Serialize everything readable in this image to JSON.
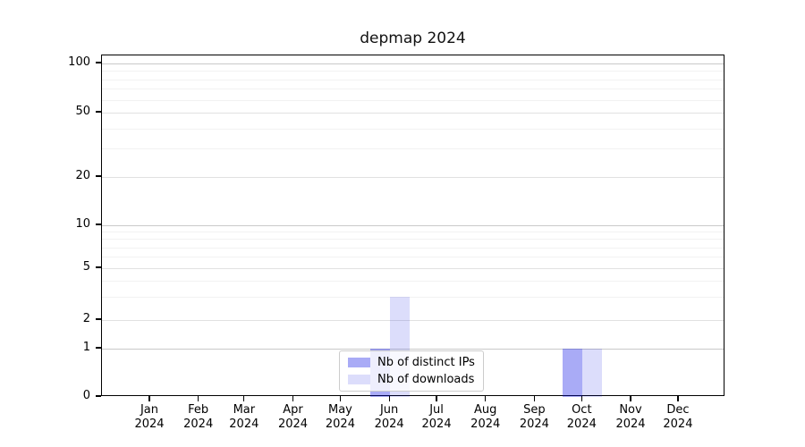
{
  "chart_data": {
    "type": "bar",
    "title": "depmap 2024",
    "categories": [
      "Jan 2024",
      "Feb 2024",
      "Mar 2024",
      "Apr 2024",
      "May 2024",
      "Jun 2024",
      "Jul 2024",
      "Aug 2024",
      "Sep 2024",
      "Oct 2024",
      "Nov 2024",
      "Dec 2024"
    ],
    "series": [
      {
        "name": "Nb of distinct IPs",
        "values": [
          0,
          0,
          0,
          0,
          0,
          1,
          0,
          0,
          0,
          1,
          0,
          0
        ]
      },
      {
        "name": "Nb of downloads",
        "values": [
          0,
          0,
          0,
          0,
          0,
          3,
          0,
          0,
          0,
          1,
          0,
          0
        ]
      }
    ],
    "xlabel": "",
    "ylabel": "",
    "yscale": "symlog (logarithmic above 1, linear 0 to 1)",
    "y_ticks": [
      100,
      50,
      20,
      10,
      5,
      2,
      1,
      0
    ],
    "ylim": [
      0,
      113
    ],
    "grid": "horizontal major and minor gridlines",
    "legend_position": "lower center, inside axes"
  },
  "axis": {
    "months": [
      "Jan",
      "Feb",
      "Mar",
      "Apr",
      "May",
      "Jun",
      "Jul",
      "Aug",
      "Sep",
      "Oct",
      "Nov",
      "Dec"
    ],
    "year_label": "2024"
  },
  "colors": {
    "bar_distinct_ips_rgba": "rgba(8,14,230,0.35)",
    "bar_downloads_rgba": "rgba(8,14,230,0.14)",
    "swatch_distinct_ips": "#a9abf6",
    "swatch_downloads": "#dcddfb",
    "grid_decade": "#c9c9c9",
    "grid_major": "#e1e1e1",
    "grid_minor": "#f2f2f2",
    "spine": "#000000"
  }
}
